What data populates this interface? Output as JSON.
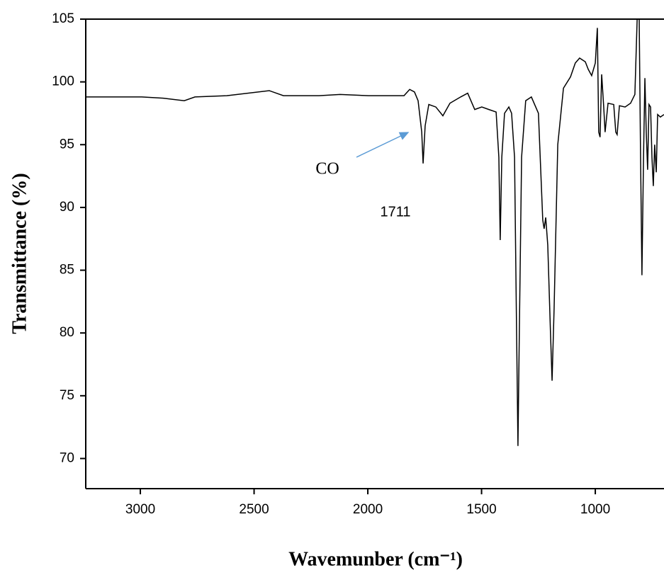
{
  "chart_data": {
    "type": "line",
    "x_label": "Wavemunber (cm⁻¹)",
    "y_label": "Transmittance (%)",
    "annotations": [
      {
        "text": "CO"
      },
      {
        "text": "1711"
      }
    ],
    "xlim": [
      3240,
      698
    ],
    "ylim": [
      67.6,
      105
    ],
    "xticks": [
      3000,
      2500,
      2000,
      1500,
      1000
    ],
    "yticks": [
      70,
      75,
      80,
      85,
      90,
      95,
      100,
      105
    ],
    "x": [
      3240,
      2994,
      2900,
      2807,
      2760,
      2620,
      2433,
      2371,
      2215,
      2122,
      1997,
      1841,
      1816,
      1795,
      1779,
      1763,
      1757,
      1748,
      1732,
      1701,
      1670,
      1639,
      1592,
      1561,
      1530,
      1499,
      1468,
      1436,
      1424,
      1418,
      1411,
      1399,
      1380,
      1368,
      1355,
      1346,
      1340,
      1334,
      1324,
      1306,
      1281,
      1250,
      1231,
      1225,
      1218,
      1209,
      1197,
      1190,
      1181,
      1165,
      1140,
      1109,
      1088,
      1069,
      1044,
      1031,
      1016,
      1000,
      991,
      985,
      979,
      972,
      963,
      957,
      944,
      919,
      910,
      904,
      894,
      869,
      845,
      826,
      816,
      807,
      801,
      795,
      788,
      782,
      776,
      770,
      764,
      757,
      751,
      745,
      739,
      732,
      726,
      714,
      698
    ],
    "series": [
      {
        "color": "#000000",
        "values": [
          98.8,
          98.8,
          98.7,
          98.5,
          98.8,
          98.9,
          99.3,
          98.9,
          98.9,
          99.0,
          98.9,
          98.9,
          99.4,
          99.2,
          98.5,
          96.0,
          93.5,
          96.5,
          98.2,
          98.0,
          97.3,
          98.3,
          98.8,
          99.1,
          97.8,
          98.0,
          97.8,
          97.6,
          94,
          87.4,
          94,
          97.5,
          98.0,
          97.5,
          94,
          80,
          71,
          80,
          94,
          98.5,
          98.8,
          97.5,
          89,
          88.3,
          89.2,
          87,
          80,
          76.2,
          82,
          95,
          99.5,
          100.4,
          101.5,
          101.9,
          101.6,
          101,
          100.5,
          101.5,
          104.3,
          96,
          95.6,
          100.6,
          98,
          96,
          98.3,
          98.2,
          96,
          95.8,
          98.1,
          98,
          98.3,
          99,
          105,
          105,
          94,
          84.6,
          94,
          100.3,
          96,
          93,
          98.2,
          98,
          94,
          91.7,
          95,
          92.8,
          97.4,
          97.2,
          97.4
        ]
      }
    ]
  }
}
